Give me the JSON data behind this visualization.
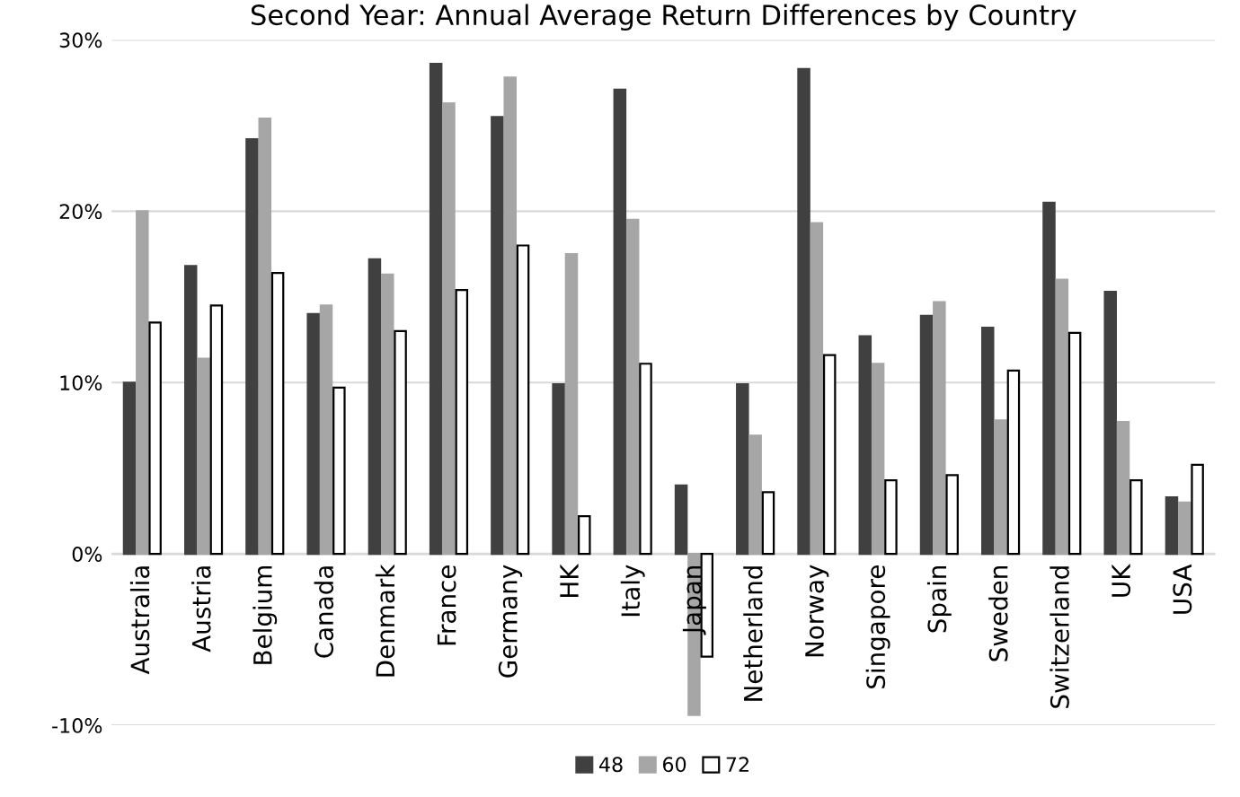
{
  "chart_data": {
    "type": "bar",
    "title": "Second Year: Annual Average Return Differences by Country",
    "categories": [
      "Australia",
      "Austria",
      "Belgium",
      "Canada",
      "Denmark",
      "France",
      "Germany",
      "HK",
      "Italy",
      "Japan",
      "Netherland",
      "Norway",
      "Singapore",
      "Spain",
      "Sweden",
      "Switzerland",
      "UK",
      "USA"
    ],
    "series": [
      {
        "name": "48",
        "color": "#404040",
        "values": [
          10.0,
          16.8,
          24.2,
          14.0,
          17.2,
          28.6,
          25.5,
          9.9,
          27.1,
          4.0,
          9.9,
          28.3,
          12.7,
          13.9,
          13.2,
          20.5,
          15.3,
          3.3
        ]
      },
      {
        "name": "60",
        "color": "#a6a6a6",
        "values": [
          20.0,
          11.4,
          25.4,
          14.5,
          16.3,
          26.3,
          27.8,
          17.5,
          19.5,
          -9.4,
          6.9,
          19.3,
          11.1,
          14.7,
          7.8,
          16.0,
          7.7,
          3.0
        ]
      },
      {
        "name": "72",
        "color": "#ffffff",
        "values": [
          13.5,
          14.5,
          16.4,
          9.7,
          13.0,
          15.4,
          18.0,
          2.2,
          11.1,
          -6.0,
          3.6,
          11.6,
          4.3,
          4.6,
          10.7,
          12.9,
          4.3,
          5.2
        ]
      }
    ],
    "ylim": [
      -10,
      30
    ],
    "yticks": [
      {
        "value": -10,
        "label": "-10%"
      },
      {
        "value": 0,
        "label": "0%"
      },
      {
        "value": 10,
        "label": "10%"
      },
      {
        "value": 20,
        "label": "20%"
      },
      {
        "value": 30,
        "label": "30%"
      }
    ],
    "grid": "y",
    "legend": "bottom"
  }
}
